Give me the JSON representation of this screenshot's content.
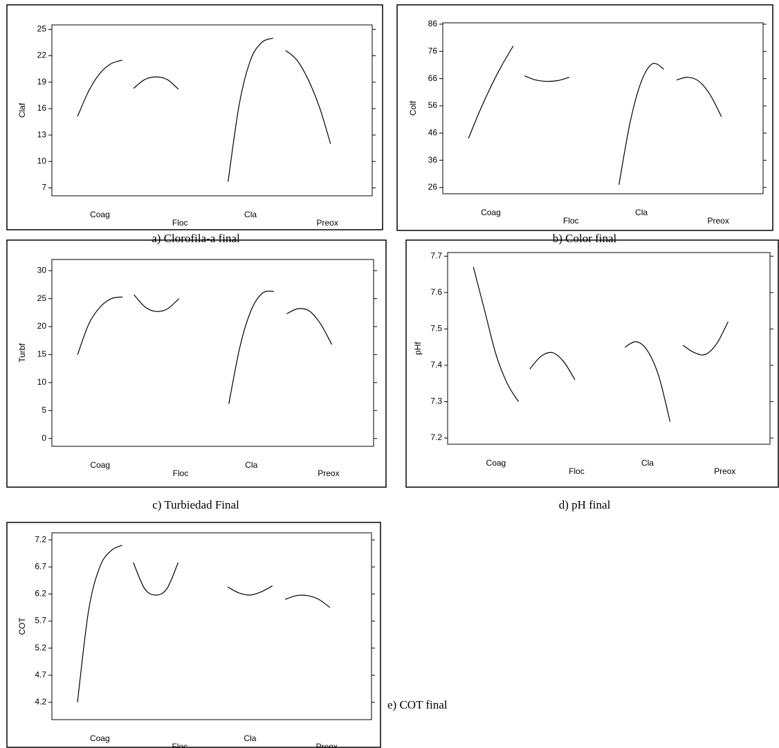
{
  "chart_data": [
    {
      "type": "line",
      "caption": "a) Clorofila-a final",
      "y_label": "Claf",
      "ylim": [
        6.1,
        25.5
      ],
      "yticks": [
        7,
        10,
        13,
        16,
        19,
        22,
        25
      ],
      "series": [
        {
          "name": "Coag",
          "color": "#000000",
          "values": [
            15.1,
            18.0,
            20.0,
            21.1,
            21.5
          ]
        },
        {
          "name": "Floc",
          "color": "#000000",
          "values": [
            18.3,
            19.3,
            19.6,
            19.3,
            18.2
          ]
        },
        {
          "name": "Cla",
          "color": "#000000",
          "values": [
            7.7,
            16.5,
            21.5,
            23.5,
            24.0
          ]
        },
        {
          "name": "Preox",
          "color": "#000000",
          "values": [
            22.6,
            21.5,
            19.3,
            16.2,
            12.0
          ]
        }
      ]
    },
    {
      "type": "line",
      "caption": "b) Color final",
      "y_label": "Colf",
      "ylim": [
        23.7,
        86.5
      ],
      "yticks": [
        26,
        36,
        46,
        56,
        66,
        76,
        86
      ],
      "series": [
        {
          "name": "Coag",
          "color": "#000000",
          "values": [
            44,
            54,
            63,
            71,
            78
          ]
        },
        {
          "name": "Floc",
          "color": "#000000",
          "values": [
            67,
            65.5,
            65,
            65.3,
            66.5
          ]
        },
        {
          "name": "Cla",
          "color": "#000000",
          "values": [
            27,
            50,
            65,
            71.5,
            69.5
          ]
        },
        {
          "name": "Preox",
          "color": "#000000",
          "values": [
            65.5,
            66.5,
            65,
            60,
            52
          ]
        }
      ]
    },
    {
      "type": "line",
      "caption": "c) Turbiedad Final",
      "y_label": "Turbf",
      "ylim": [
        -1.4,
        32
      ],
      "yticks": [
        0,
        5,
        10,
        15,
        20,
        25,
        30
      ],
      "series": [
        {
          "name": "Coag",
          "color": "#000000",
          "values": [
            15,
            20.5,
            23.5,
            25,
            25.3
          ]
        },
        {
          "name": "Floc",
          "color": "#000000",
          "values": [
            25.7,
            23.5,
            22.7,
            23.2,
            25.0
          ]
        },
        {
          "name": "Cla",
          "color": "#000000",
          "values": [
            6.2,
            16.5,
            23,
            26,
            26.3
          ]
        },
        {
          "name": "Preox",
          "color": "#000000",
          "values": [
            22.3,
            23.2,
            22.8,
            20.5,
            16.8
          ]
        }
      ]
    },
    {
      "type": "line",
      "caption": "d)  pH final",
      "y_label": "pHf",
      "ylim": [
        7.183,
        7.71
      ],
      "yticks": [
        7.2,
        7.3,
        7.4,
        7.5,
        7.6,
        7.7
      ],
      "series": [
        {
          "name": "Coag",
          "color": "#000000",
          "values": [
            7.67,
            7.55,
            7.43,
            7.35,
            7.3
          ]
        },
        {
          "name": "Floc",
          "color": "#000000",
          "values": [
            7.39,
            7.425,
            7.435,
            7.41,
            7.36
          ]
        },
        {
          "name": "Cla",
          "color": "#000000",
          "values": [
            7.45,
            7.465,
            7.44,
            7.37,
            7.245
          ]
        },
        {
          "name": "Preox",
          "color": "#000000",
          "values": [
            7.455,
            7.435,
            7.43,
            7.46,
            7.52
          ]
        }
      ]
    },
    {
      "type": "line",
      "caption": "e) COT final",
      "y_label": "COT",
      "ylim": [
        3.88,
        7.33
      ],
      "yticks": [
        4.2,
        4.7,
        5.2,
        5.7,
        6.2,
        6.7,
        7.2
      ],
      "series": [
        {
          "name": "Coag",
          "color": "#000000",
          "values": [
            4.2,
            5.9,
            6.7,
            7.0,
            7.1
          ]
        },
        {
          "name": "Floc",
          "color": "#000000",
          "values": [
            6.78,
            6.3,
            6.18,
            6.3,
            6.78
          ]
        },
        {
          "name": "Cla",
          "color": "#000000",
          "values": [
            6.33,
            6.22,
            6.18,
            6.24,
            6.35
          ]
        },
        {
          "name": "Preox",
          "color": "#000000",
          "values": [
            6.1,
            6.17,
            6.17,
            6.1,
            5.95
          ]
        }
      ]
    }
  ]
}
